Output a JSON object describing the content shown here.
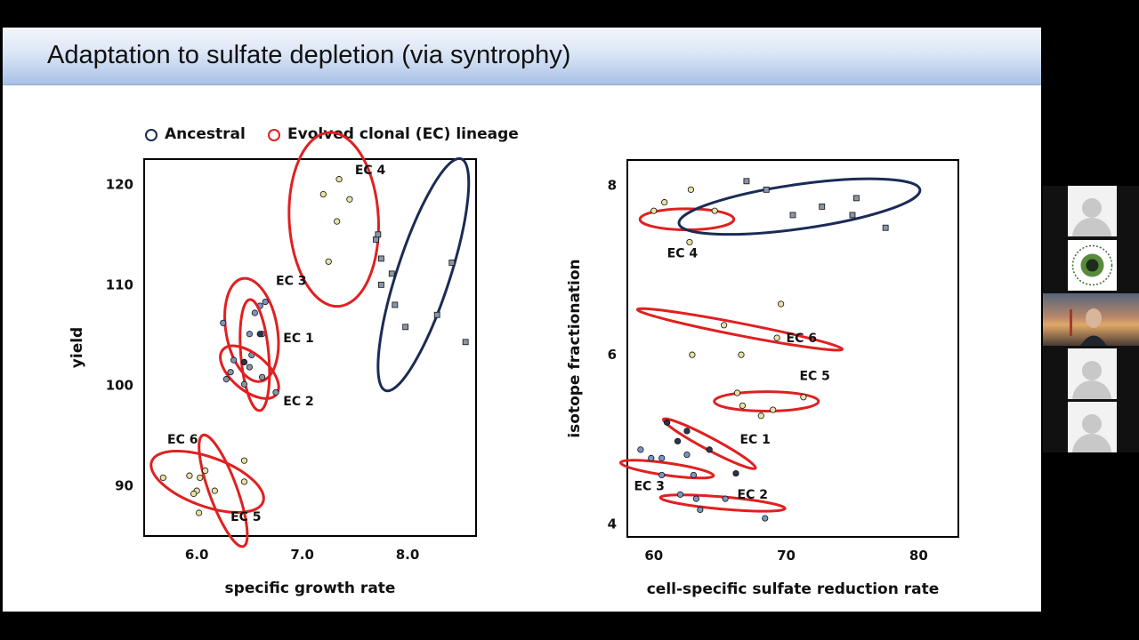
{
  "slide": {
    "title": "Adaptation to sulfate depletion (via syntrophy)"
  },
  "legend": [
    {
      "label": "Ancestral",
      "color": "#1a2b56"
    },
    {
      "label": "Evolved clonal (EC) lineage",
      "color": "#e02020"
    }
  ],
  "colors": {
    "ancestral": "#1a2b56",
    "evolved": "#e02020",
    "point_yellow": "#e8e2a4",
    "point_blue": "#7e93c4",
    "point_dark": "#2a3550",
    "point_gray": "#8a96a8"
  },
  "chart_data": [
    {
      "type": "scatter",
      "title": "",
      "xlabel": "specific growth rate",
      "ylabel": "yield",
      "xlim": [
        5.5,
        8.65
      ],
      "ylim": [
        85,
        122.5
      ],
      "xticks": [
        {
          "v": 6.0,
          "label": "6.0"
        },
        {
          "v": 7.0,
          "label": "7.0"
        },
        {
          "v": 8.0,
          "label": "8.0"
        }
      ],
      "yticks": [
        {
          "v": 90,
          "label": "90"
        },
        {
          "v": 100,
          "label": "100"
        },
        {
          "v": 110,
          "label": "110"
        },
        {
          "v": 120,
          "label": "120"
        }
      ],
      "groups": [
        {
          "label": "EC 4",
          "kind": "evolved",
          "ellipse": {
            "cx": 7.3,
            "cy": 116.5,
            "rx": 5.0,
            "ry": 1.6,
            "angle": 87
          },
          "label_pos": [
            7.5,
            121.0
          ],
          "label_anchor": "start",
          "points": [
            [
              7.35,
              120.5
            ],
            [
              7.2,
              119.0
            ],
            [
              7.45,
              118.5
            ],
            [
              7.33,
              116.3
            ],
            [
              7.25,
              112.3
            ]
          ],
          "fill": "point_yellow",
          "shape": "circle"
        },
        {
          "label": "Ancestral",
          "kind": "ancestral",
          "ellipse": {
            "cx": 8.15,
            "cy": 111.0,
            "rx": 7.0,
            "ry": 0.95,
            "angle": -72
          },
          "label_pos": null,
          "label_anchor": "start",
          "points": [
            [
              7.7,
              114.5
            ],
            [
              7.72,
              115.0
            ],
            [
              7.75,
              112.6
            ],
            [
              7.85,
              111.1
            ],
            [
              7.75,
              110.0
            ],
            [
              7.88,
              108.0
            ],
            [
              7.98,
              105.8
            ],
            [
              8.28,
              107.0
            ],
            [
              8.42,
              112.2
            ],
            [
              8.55,
              104.3
            ]
          ],
          "fill": "point_gray",
          "shape": "square"
        },
        {
          "label": "EC 3",
          "kind": "evolved",
          "ellipse": {
            "cx": 6.52,
            "cy": 105.5,
            "rx": 3.0,
            "ry": 0.92,
            "angle": 80
          },
          "label_pos": [
            6.75,
            110.0
          ],
          "label_anchor": "start",
          "points": [
            [
              6.65,
              108.3
            ],
            [
              6.6,
              107.9
            ],
            [
              6.55,
              107.2
            ],
            [
              6.25,
              106.2
            ],
            [
              6.62,
              105.1
            ],
            [
              6.5,
              105.1
            ],
            [
              6.52,
              103.0
            ],
            [
              6.35,
              102.5
            ]
          ],
          "fill": "point_blue",
          "shape": "circle"
        },
        {
          "label": "EC 1",
          "kind": "evolved",
          "ellipse": {
            "cx": 6.55,
            "cy": 103.0,
            "rx": 3.2,
            "ry": 0.5,
            "angle": 85
          },
          "label_pos": [
            6.82,
            104.3
          ],
          "label_anchor": "start",
          "points": [
            [
              6.6,
              105.1
            ],
            [
              6.45,
              102.3
            ]
          ],
          "fill": "point_dark",
          "shape": "circle"
        },
        {
          "label": "EC 2",
          "kind": "evolved",
          "ellipse": {
            "cx": 6.5,
            "cy": 101.3,
            "rx": 2.0,
            "ry": 0.65,
            "angle": 40
          },
          "label_pos": [
            6.82,
            98.0
          ],
          "label_anchor": "start",
          "points": [
            [
              6.32,
              101.3
            ],
            [
              6.5,
              101.8
            ],
            [
              6.62,
              100.8
            ],
            [
              6.45,
              100.1
            ],
            [
              6.75,
              99.3
            ],
            [
              6.28,
              100.6
            ]
          ],
          "fill": "point_gray",
          "shape": "circle"
        },
        {
          "label": "EC 6",
          "kind": "evolved",
          "ellipse": {
            "cx": 6.1,
            "cy": 90.4,
            "rx": 3.4,
            "ry": 0.88,
            "angle": 20
          },
          "label_pos": [
            5.72,
            94.2
          ],
          "label_anchor": "start",
          "points": [
            [
              5.68,
              90.8
            ],
            [
              5.93,
              91.0
            ],
            [
              6.0,
              89.5
            ],
            [
              5.97,
              89.2
            ],
            [
              6.03,
              90.8
            ],
            [
              6.45,
              92.5
            ]
          ],
          "fill": "point_yellow",
          "shape": "circle"
        },
        {
          "label": "EC 5",
          "kind": "evolved",
          "ellipse": {
            "cx": 6.25,
            "cy": 89.5,
            "rx": 3.4,
            "ry": 0.5,
            "angle": 70
          },
          "label_pos": [
            6.32,
            86.5
          ],
          "label_anchor": "start",
          "points": [
            [
              6.17,
              89.5
            ],
            [
              6.45,
              90.4
            ],
            [
              6.02,
              87.3
            ],
            [
              6.08,
              91.5
            ]
          ],
          "fill": "point_yellow",
          "shape": "circle"
        }
      ]
    },
    {
      "type": "scatter",
      "title": "",
      "xlabel": "cell-specific sulfate reduction rate",
      "ylabel": "isotope fractionation",
      "xlim": [
        58,
        83
      ],
      "ylim": [
        3.85,
        8.3
      ],
      "xticks": [
        {
          "v": 60,
          "label": "60"
        },
        {
          "v": 70,
          "label": "70"
        },
        {
          "v": 80,
          "label": "80"
        }
      ],
      "yticks": [
        {
          "v": 4,
          "label": "4"
        },
        {
          "v": 6,
          "label": "6"
        },
        {
          "v": 8,
          "label": "8"
        }
      ],
      "groups": [
        {
          "label": "EC 4",
          "kind": "evolved",
          "ellipse": {
            "cx": 62.5,
            "cy": 7.6,
            "rx": 2.7,
            "ry": 0.38,
            "angle": 0
          },
          "label_pos": [
            61.0,
            7.15
          ],
          "label_anchor": "start",
          "points": [
            [
              60.0,
              7.7
            ],
            [
              60.8,
              7.8
            ],
            [
              62.8,
              7.95
            ],
            [
              64.6,
              7.7
            ],
            [
              62.7,
              7.33
            ]
          ],
          "fill": "point_yellow",
          "shape": "circle"
        },
        {
          "label": "Ancestral",
          "kind": "ancestral",
          "ellipse": {
            "cx": 71.0,
            "cy": 7.75,
            "rx": 7.0,
            "ry": 0.8,
            "angle": -8
          },
          "label_pos": null,
          "label_anchor": "start",
          "points": [
            [
              67.0,
              8.05
            ],
            [
              68.5,
              7.95
            ],
            [
              70.5,
              7.65
            ],
            [
              72.7,
              7.75
            ],
            [
              75.0,
              7.65
            ],
            [
              77.5,
              7.5
            ],
            [
              75.3,
              7.85
            ]
          ],
          "fill": "point_gray",
          "shape": "square"
        },
        {
          "label": "EC 6",
          "kind": "evolved",
          "ellipse": {
            "cx": 66.5,
            "cy": 6.3,
            "rx": 6.0,
            "ry": 0.22,
            "angle": 11
          },
          "label_pos": [
            70.0,
            6.15
          ],
          "label_anchor": "start",
          "points": [
            [
              62.9,
              6.0
            ],
            [
              65.3,
              6.35
            ],
            [
              66.6,
              6.0
            ],
            [
              69.3,
              6.2
            ],
            [
              69.6,
              6.6
            ]
          ],
          "fill": "point_yellow",
          "shape": "circle"
        },
        {
          "label": "EC 5",
          "kind": "evolved",
          "ellipse": {
            "cx": 68.5,
            "cy": 5.45,
            "rx": 3.0,
            "ry": 0.35,
            "angle": 0
          },
          "label_pos": [
            71.0,
            5.7
          ],
          "label_anchor": "start",
          "points": [
            [
              66.3,
              5.55
            ],
            [
              66.7,
              5.4
            ],
            [
              68.1,
              5.28
            ],
            [
              69.0,
              5.35
            ],
            [
              71.3,
              5.5
            ]
          ],
          "fill": "point_yellow",
          "shape": "circle"
        },
        {
          "label": "EC 1",
          "kind": "evolved",
          "ellipse": {
            "cx": 64.2,
            "cy": 4.95,
            "rx": 3.0,
            "ry": 0.22,
            "angle": 28
          },
          "label_pos": [
            66.5,
            4.95
          ],
          "label_anchor": "start",
          "points": [
            [
              61.0,
              5.2
            ],
            [
              62.5,
              5.1
            ],
            [
              61.8,
              4.98
            ],
            [
              64.2,
              4.88
            ],
            [
              66.2,
              4.6
            ]
          ],
          "fill": "point_dark",
          "shape": "circle"
        },
        {
          "label": "EC 3",
          "kind": "evolved",
          "ellipse": {
            "cx": 61.0,
            "cy": 4.65,
            "rx": 2.7,
            "ry": 0.22,
            "angle": 8
          },
          "label_pos": [
            58.5,
            4.4
          ],
          "label_anchor": "start",
          "points": [
            [
              59.0,
              4.88
            ],
            [
              59.8,
              4.78
            ],
            [
              60.6,
              4.78
            ],
            [
              62.5,
              4.82
            ],
            [
              60.6,
              4.58
            ],
            [
              63.0,
              4.58
            ]
          ],
          "fill": "point_blue",
          "shape": "circle"
        },
        {
          "label": "EC 2",
          "kind": "evolved",
          "ellipse": {
            "cx": 65.2,
            "cy": 4.25,
            "rx": 3.6,
            "ry": 0.22,
            "angle": 5
          },
          "label_pos": [
            66.3,
            4.3
          ],
          "label_anchor": "start",
          "points": [
            [
              62.0,
              4.35
            ],
            [
              63.2,
              4.3
            ],
            [
              63.5,
              4.17
            ],
            [
              65.4,
              4.3
            ],
            [
              68.4,
              4.07
            ]
          ],
          "fill": "point_blue",
          "shape": "circle"
        }
      ]
    }
  ]
}
